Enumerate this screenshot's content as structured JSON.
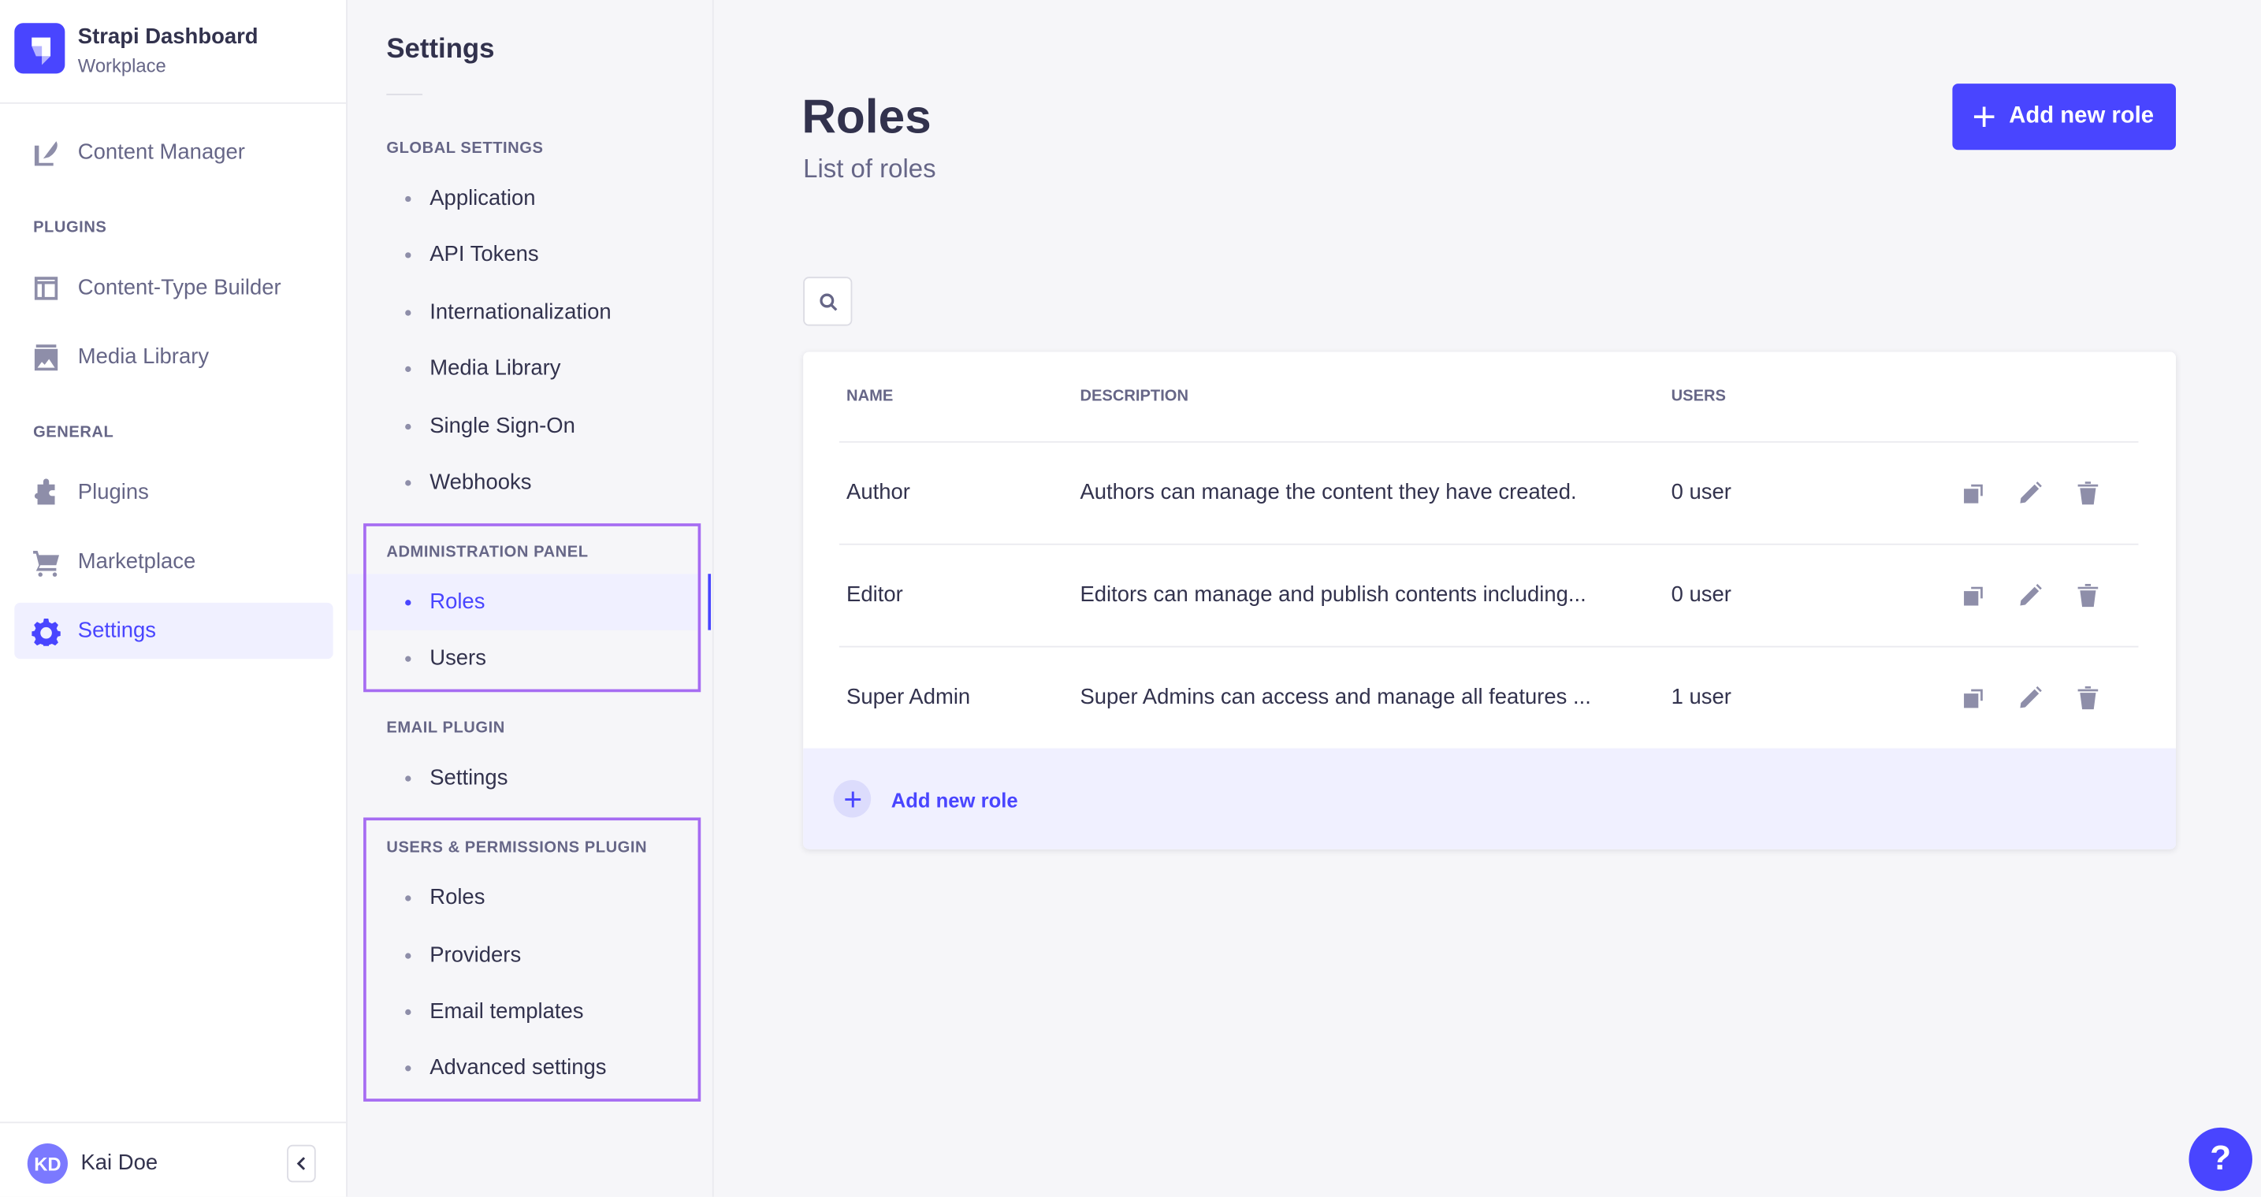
{
  "brand": {
    "title": "Strapi Dashboard",
    "subtitle": "Workplace"
  },
  "nav": {
    "content_manager": "Content Manager",
    "plugins_header": "PLUGINS",
    "content_type_builder": "Content-Type Builder",
    "media_library": "Media Library",
    "general_header": "GENERAL",
    "plugins": "Plugins",
    "marketplace": "Marketplace",
    "settings": "Settings"
  },
  "user": {
    "initials": "KD",
    "name": "Kai Doe"
  },
  "settings_nav": {
    "title": "Settings",
    "global": {
      "header": "GLOBAL SETTINGS",
      "items": [
        "Application",
        "API Tokens",
        "Internationalization",
        "Media Library",
        "Single Sign-On",
        "Webhooks"
      ]
    },
    "admin": {
      "header": "ADMINISTRATION PANEL",
      "items": [
        "Roles",
        "Users"
      ]
    },
    "email": {
      "header": "EMAIL PLUGIN",
      "items": [
        "Settings"
      ]
    },
    "up": {
      "header": "USERS & PERMISSIONS PLUGIN",
      "items": [
        "Roles",
        "Providers",
        "Email templates",
        "Advanced settings"
      ]
    }
  },
  "main": {
    "title": "Roles",
    "subtitle": "List of roles",
    "add_button": "Add new role",
    "table": {
      "columns": [
        "NAME",
        "DESCRIPTION",
        "USERS"
      ],
      "rows": [
        {
          "name": "Author",
          "description": "Authors can manage the content they have created.",
          "users": "0 user"
        },
        {
          "name": "Editor",
          "description": "Editors can manage and publish contents including...",
          "users": "0 user"
        },
        {
          "name": "Super Admin",
          "description": "Super Admins can access and manage all features ...",
          "users": "1 user"
        }
      ],
      "footer_add": "Add new role"
    }
  },
  "help": "?",
  "colors": {
    "primary": "#4945ff",
    "highlight_box": "#a66cf2",
    "active_bg": "#f0f0ff"
  }
}
